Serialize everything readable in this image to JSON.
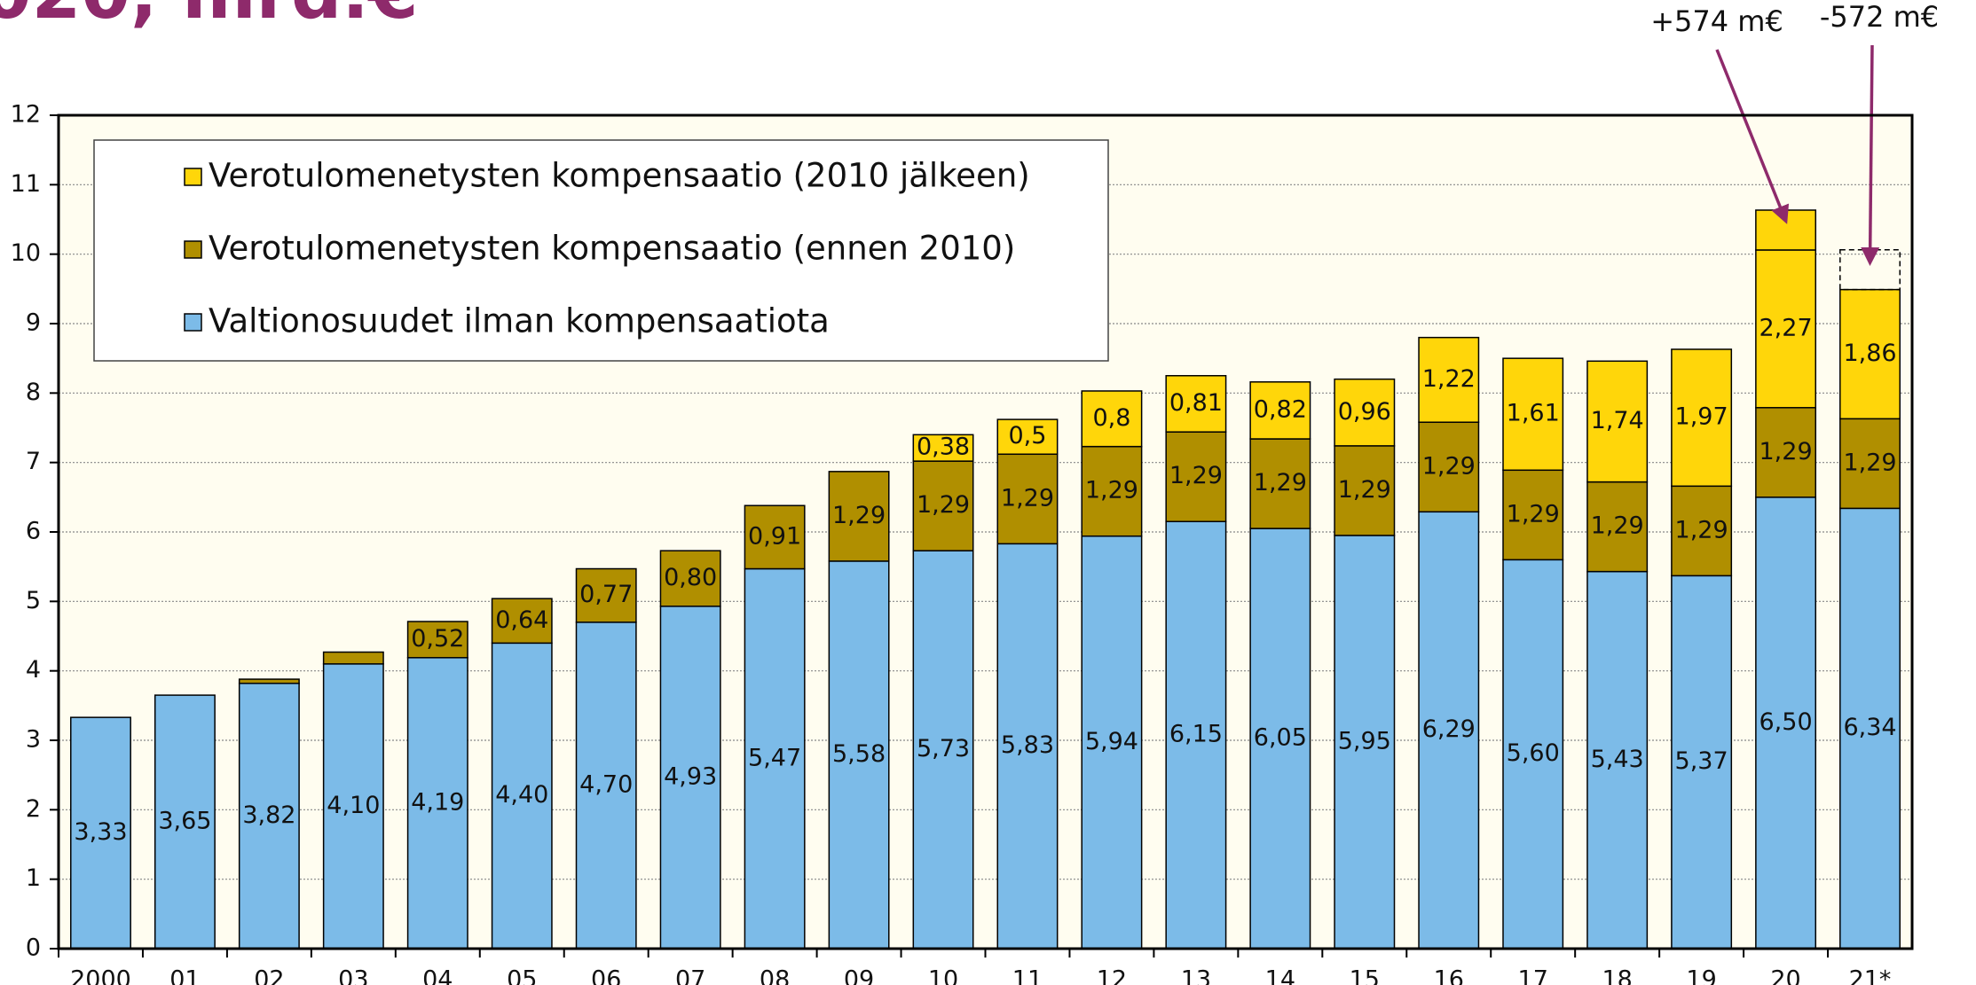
{
  "chart_data": {
    "type": "stacked_bar",
    "title": "020, mrd.€",
    "categories": [
      "2000",
      "01",
      "02",
      "03",
      "04",
      "05",
      "06",
      "07",
      "08",
      "09",
      "10",
      "11",
      "12",
      "13",
      "14",
      "15",
      "16",
      "17",
      "18",
      "19",
      "20",
      "21*"
    ],
    "series": [
      {
        "name": "Valtionosuudet ilman kompensaatiota",
        "color": "#7cbbe8",
        "values": [
          3.33,
          3.65,
          3.82,
          4.1,
          4.19,
          4.4,
          4.7,
          4.93,
          5.47,
          5.58,
          5.73,
          5.83,
          5.94,
          6.15,
          6.05,
          5.95,
          6.29,
          5.6,
          5.43,
          5.37,
          6.5,
          6.34
        ],
        "value_labels": [
          "3,33",
          "3,65",
          "3,82",
          "4,10",
          "4,19",
          "4,40",
          "4,70",
          "4,93",
          "5,47",
          "5,58",
          "5,73",
          "5,83",
          "5,94",
          "6,15",
          "6,05",
          "5,95",
          "6,29",
          "5,60",
          "5,43",
          "5,37",
          "6,50",
          "6,34"
        ]
      },
      {
        "name": "Verotulomenetysten kompensaatio (ennen 2010)",
        "color": "#b08f00",
        "values": [
          null,
          null,
          0.06,
          0.17,
          0.52,
          0.64,
          0.77,
          0.8,
          0.91,
          1.29,
          1.29,
          1.29,
          1.29,
          1.29,
          1.29,
          1.29,
          1.29,
          1.29,
          1.29,
          1.29,
          1.29,
          1.29
        ],
        "value_labels": [
          null,
          null,
          null,
          null,
          "0,52",
          "0,64",
          "0,77",
          "0,80",
          "0,91",
          "1,29",
          "1,29",
          "1,29",
          "1,29",
          "1,29",
          "1,29",
          "1,29",
          "1,29",
          "1,29",
          "1,29",
          "1,29",
          "1,29",
          "1,29"
        ]
      },
      {
        "name": "Verotulomenetysten kompensaatio (2010 jälkeen)",
        "color": "#ffd60a",
        "values": [
          null,
          null,
          null,
          null,
          null,
          null,
          null,
          null,
          null,
          null,
          0.38,
          0.5,
          0.8,
          0.81,
          0.82,
          0.96,
          1.22,
          1.61,
          1.74,
          1.97,
          2.27,
          1.86
        ],
        "value_labels": [
          null,
          null,
          null,
          null,
          null,
          null,
          null,
          null,
          null,
          null,
          "0,38",
          "0,5",
          "0,8",
          "0,81",
          "0,82",
          "0,96",
          "1,22",
          "1,61",
          "1,74",
          "1,97",
          "2,27",
          "1,86"
        ]
      }
    ],
    "annotations": [
      {
        "text": "+574 m€",
        "category": 20,
        "value": 0.574
      },
      {
        "text": "-572 m€",
        "category": 21,
        "value": -0.572
      }
    ],
    "ylim": [
      0,
      12
    ],
    "yticks": [
      0,
      1,
      2,
      3,
      4,
      5,
      6,
      7,
      8,
      9,
      10,
      11,
      12
    ],
    "grid": true,
    "legend": "upper left"
  }
}
